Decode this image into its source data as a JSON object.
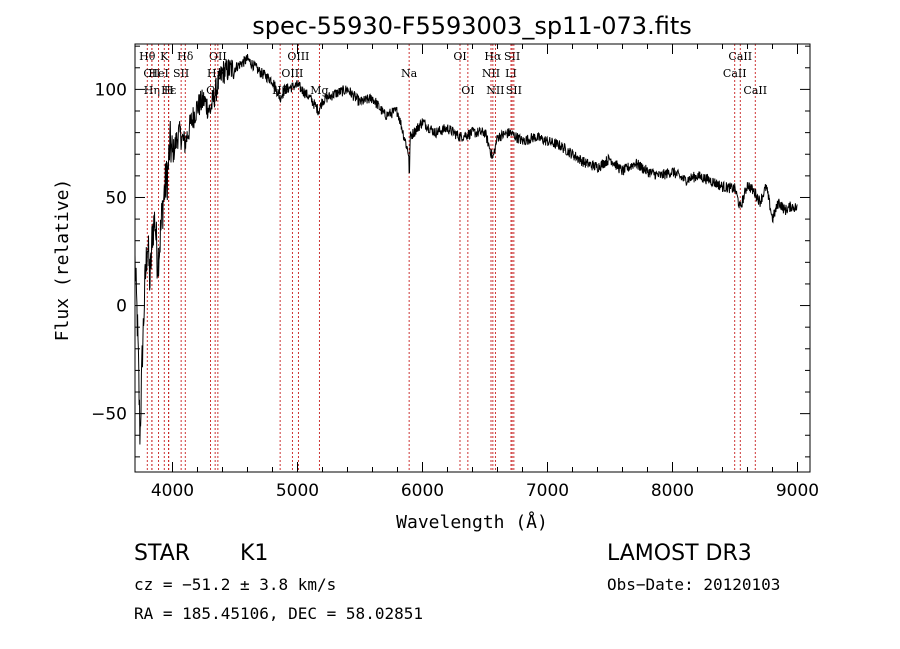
{
  "chart_data": {
    "type": "line",
    "title": "spec-55930-F5593003_sp11-073.fits",
    "xlabel": "Wavelength (Å)",
    "ylabel": "Flux (relative)",
    "xlim": [
      3700,
      9100
    ],
    "ylim": [
      -77,
      121
    ],
    "xticks": [
      4000,
      5000,
      6000,
      7000,
      8000,
      9000
    ],
    "yticks": [
      -50,
      0,
      50,
      100
    ],
    "series": [
      {
        "name": "flux",
        "x": [
          3700,
          3720,
          3740,
          3760,
          3780,
          3800,
          3820,
          3840,
          3860,
          3880,
          3900,
          3920,
          3940,
          3960,
          3980,
          4000,
          4050,
          4100,
          4150,
          4200,
          4250,
          4300,
          4350,
          4400,
          4500,
          4600,
          4700,
          4800,
          4860,
          4900,
          5000,
          5100,
          5170,
          5200,
          5300,
          5400,
          5500,
          5600,
          5700,
          5800,
          5890,
          5895,
          5900,
          6000,
          6100,
          6200,
          6300,
          6400,
          6500,
          6563,
          6600,
          6700,
          6800,
          6900,
          7000,
          7100,
          7200,
          7300,
          7400,
          7500,
          7600,
          7700,
          7800,
          7900,
          8000,
          8100,
          8200,
          8300,
          8400,
          8500,
          8542,
          8600,
          8662,
          8700,
          8750,
          8800,
          8850,
          8900,
          8950,
          9000
        ],
        "values": [
          20,
          -10,
          -60,
          -20,
          10,
          30,
          10,
          35,
          40,
          20,
          30,
          45,
          55,
          60,
          75,
          70,
          80,
          75,
          85,
          92,
          95,
          90,
          100,
          108,
          110,
          114,
          108,
          104,
          96,
          100,
          102,
          96,
          90,
          95,
          98,
          100,
          94,
          96,
          88,
          90,
          70,
          55,
          78,
          85,
          80,
          82,
          78,
          80,
          80,
          68,
          78,
          80,
          76,
          78,
          76,
          74,
          70,
          66,
          64,
          68,
          62,
          66,
          62,
          60,
          62,
          58,
          60,
          58,
          55,
          54,
          45,
          56,
          52,
          48,
          55,
          40,
          48,
          44,
          46,
          45
        ]
      }
    ],
    "line_markers": [
      {
        "label": "Hθ",
        "x": 3798,
        "row": 1
      },
      {
        "label": "CII",
        "x": 3835,
        "row": 2
      },
      {
        "label": "Hη",
        "x": 3835,
        "row": 3
      },
      {
        "label": "K",
        "x": 3934,
        "row": 1
      },
      {
        "label": "HeI",
        "x": 3889,
        "row": 2
      },
      {
        "label": "Hε",
        "x": 3970,
        "row": 3
      },
      {
        "label": "Hδ",
        "x": 4102,
        "row": 1
      },
      {
        "label": "SII",
        "x": 4069,
        "row": 2
      },
      {
        "label": "H",
        "x": 3969,
        "row": 3
      },
      {
        "label": "OII",
        "x": 4363,
        "row": 1
      },
      {
        "label": "Hγ",
        "x": 4341,
        "row": 2
      },
      {
        "label": "G",
        "x": 4304,
        "row": 3
      },
      {
        "label": "OIII",
        "x": 5007,
        "row": 1
      },
      {
        "label": "OIII",
        "x": 4959,
        "row": 2
      },
      {
        "label": "Hβ",
        "x": 4861,
        "row": 3
      },
      {
        "label": "Mg",
        "x": 5175,
        "row": 3
      },
      {
        "label": "Na",
        "x": 5893,
        "row": 2
      },
      {
        "label": "OI",
        "x": 6300,
        "row": 1
      },
      {
        "label": "OI",
        "x": 6363,
        "row": 3
      },
      {
        "label": "Hα",
        "x": 6563,
        "row": 1
      },
      {
        "label": "SII",
        "x": 6717,
        "row": 1
      },
      {
        "label": "NII",
        "x": 6548,
        "row": 2
      },
      {
        "label": "LI",
        "x": 6708,
        "row": 2
      },
      {
        "label": "NII",
        "x": 6583,
        "row": 3
      },
      {
        "label": "SII",
        "x": 6731,
        "row": 3
      },
      {
        "label": "CaII",
        "x": 8542,
        "row": 1
      },
      {
        "label": "CaII",
        "x": 8498,
        "row": 2
      },
      {
        "label": "CaII",
        "x": 8662,
        "row": 3
      }
    ]
  },
  "info": {
    "obj_class": "STAR",
    "subclass": "K1",
    "survey": "LAMOST DR3",
    "cz": "cz = −51.2 ± 3.8 km/s",
    "obs_date": "Obs−Date: 20120103",
    "coords": "RA = 185.45106, DEC =  58.02851"
  }
}
